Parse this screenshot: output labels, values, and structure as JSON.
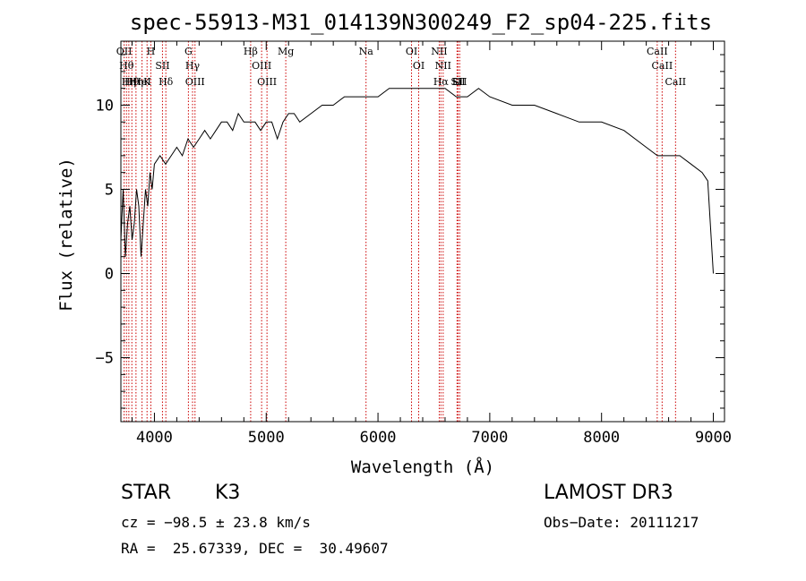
{
  "chart_data": {
    "type": "line",
    "title": "spec-55913-M31_014139N300249_F2_sp04-225.fits",
    "xlabel": "Wavelength (Å)",
    "ylabel": "Flux (relative)",
    "xlim": [
      3700,
      9100
    ],
    "ylim": [
      -8.8,
      13.8
    ],
    "xticks": [
      4000,
      5000,
      6000,
      7000,
      8000,
      9000
    ],
    "yticks": [
      -5,
      0,
      5,
      10
    ],
    "grid": false,
    "line_color": "#000000",
    "marker_color": "#cc0000",
    "series": [
      {
        "x": [
          3700,
          3720,
          3740,
          3760,
          3780,
          3800,
          3820,
          3840,
          3860,
          3880,
          3900,
          3920,
          3940,
          3960,
          3980,
          4000,
          4050,
          4100,
          4150,
          4200,
          4250,
          4300,
          4350,
          4400,
          4450,
          4500,
          4550,
          4600,
          4650,
          4700,
          4750,
          4800,
          4850,
          4900,
          4950,
          5000,
          5050,
          5100,
          5150,
          5200,
          5250,
          5300,
          5400,
          5500,
          5600,
          5700,
          5800,
          5900,
          6000,
          6100,
          6200,
          6300,
          6400,
          6500,
          6600,
          6700,
          6800,
          6900,
          7000,
          7200,
          7400,
          7600,
          7800,
          8000,
          8200,
          8400,
          8500,
          8600,
          8700,
          8800,
          8900,
          8950,
          9000
        ],
        "values": [
          2.0,
          5.0,
          1.0,
          3.0,
          4.0,
          2.0,
          3.0,
          5.0,
          4.0,
          1.0,
          3.0,
          5.0,
          4.0,
          6.0,
          5.0,
          6.5,
          7.0,
          6.5,
          7.0,
          7.5,
          7.0,
          8.0,
          7.5,
          8.0,
          8.5,
          8.0,
          8.5,
          9.0,
          9.0,
          8.5,
          9.5,
          9.0,
          9.0,
          9.0,
          8.5,
          9.0,
          9.0,
          8.0,
          9.0,
          9.5,
          9.5,
          9.0,
          9.5,
          10.0,
          10.0,
          10.5,
          10.5,
          10.5,
          10.5,
          11.0,
          11.0,
          11.0,
          11.0,
          11.0,
          11.0,
          10.5,
          10.5,
          11.0,
          10.5,
          10.0,
          10.0,
          9.5,
          9.0,
          9.0,
          8.5,
          7.5,
          7.0,
          7.0,
          7.0,
          6.5,
          6.0,
          5.5,
          0.0
        ]
      }
    ],
    "lines": [
      {
        "x": 3729,
        "label": "OII"
      },
      {
        "x": 3750,
        "label": "Hθ"
      },
      {
        "x": 3771,
        "label": "Hη"
      },
      {
        "x": 3798,
        "label": "Hθ"
      },
      {
        "x": 3835,
        "label": "Hη"
      },
      {
        "x": 3889,
        "label": "HeI"
      },
      {
        "x": 3934,
        "label": "K"
      },
      {
        "x": 3968,
        "label": "H"
      },
      {
        "x": 4072,
        "label": "SII"
      },
      {
        "x": 4102,
        "label": "Hδ"
      },
      {
        "x": 4304,
        "label": "G"
      },
      {
        "x": 4341,
        "label": "Hγ"
      },
      {
        "x": 4363,
        "label": "OIII"
      },
      {
        "x": 4861,
        "label": "Hβ"
      },
      {
        "x": 4959,
        "label": "OIII"
      },
      {
        "x": 5007,
        "label": "OIII"
      },
      {
        "x": 5175,
        "label": "Mg"
      },
      {
        "x": 5893,
        "label": "Na"
      },
      {
        "x": 6300,
        "label": "OI"
      },
      {
        "x": 6364,
        "label": "OI"
      },
      {
        "x": 6548,
        "label": "NII"
      },
      {
        "x": 6563,
        "label": "Hα"
      },
      {
        "x": 6583,
        "label": "NII"
      },
      {
        "x": 6707,
        "label": "Li"
      },
      {
        "x": 6716,
        "label": "SII"
      },
      {
        "x": 6731,
        "label": "SII"
      },
      {
        "x": 8498,
        "label": "CaII"
      },
      {
        "x": 8542,
        "label": "CaII"
      },
      {
        "x": 8662,
        "label": "CaII"
      }
    ]
  },
  "info": {
    "object_class": "STAR",
    "subclass": "K3",
    "velocity": "cz = −98.5 ± 23.8 km/s",
    "coords": "RA =  25.67339, DEC =  30.49607",
    "survey": "LAMOST DR3",
    "obs_date": "Obs−Date: 20111217"
  }
}
